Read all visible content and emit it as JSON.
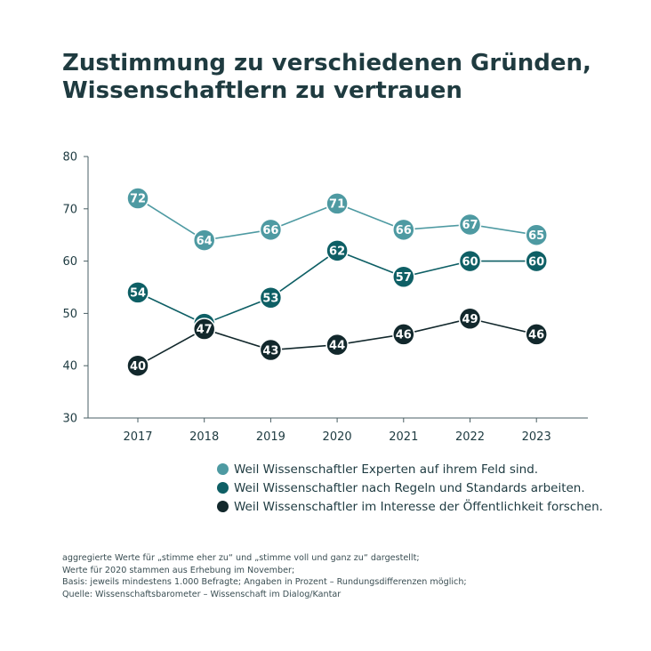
{
  "title_lines": [
    "Zustimmung zu verschiedenen Gründen,",
    "Wissenschaftlern zu vertrauen"
  ],
  "chart_data": {
    "type": "line",
    "title": "Zustimmung zu verschiedenen Gründen, Wissenschaftlern zu vertrauen",
    "x": [
      "2017",
      "2018",
      "2019",
      "2020",
      "2021",
      "2022",
      "2023"
    ],
    "ylim": [
      30,
      80
    ],
    "yticks": [
      "30",
      "40",
      "50",
      "60",
      "70",
      "80"
    ],
    "grid": false,
    "legend_position": "bottom",
    "series": [
      {
        "name": "Weil Wissenschaftler Experten auf ihrem Feld sind.",
        "color": "#4e9aa2",
        "values": [
          72,
          64,
          66,
          71,
          66,
          67,
          65
        ]
      },
      {
        "name": "Weil Wissenschaftler nach Regeln und Standards arbeiten.",
        "color": "#0e5f65",
        "values": [
          54,
          48,
          53,
          62,
          57,
          60,
          60
        ]
      },
      {
        "name": "Weil Wissenschaftler im Interesse der Öffentlichkeit forschen.",
        "color": "#12282c",
        "values": [
          40,
          47,
          43,
          44,
          46,
          49,
          46
        ]
      }
    ]
  },
  "notes": [
    "aggregierte Werte für „stimme eher zu“ und „stimme voll und ganz zu“ dargestellt;",
    "Werte für 2020 stammen aus Erhebung im November;",
    "Basis: jeweils mindestens 1.000 Befragte; Angaben in Prozent – Rundungsdifferenzen möglich;",
    "Quelle: Wissenschaftsbarometer – Wissenschaft im Dialog/Kantar"
  ]
}
